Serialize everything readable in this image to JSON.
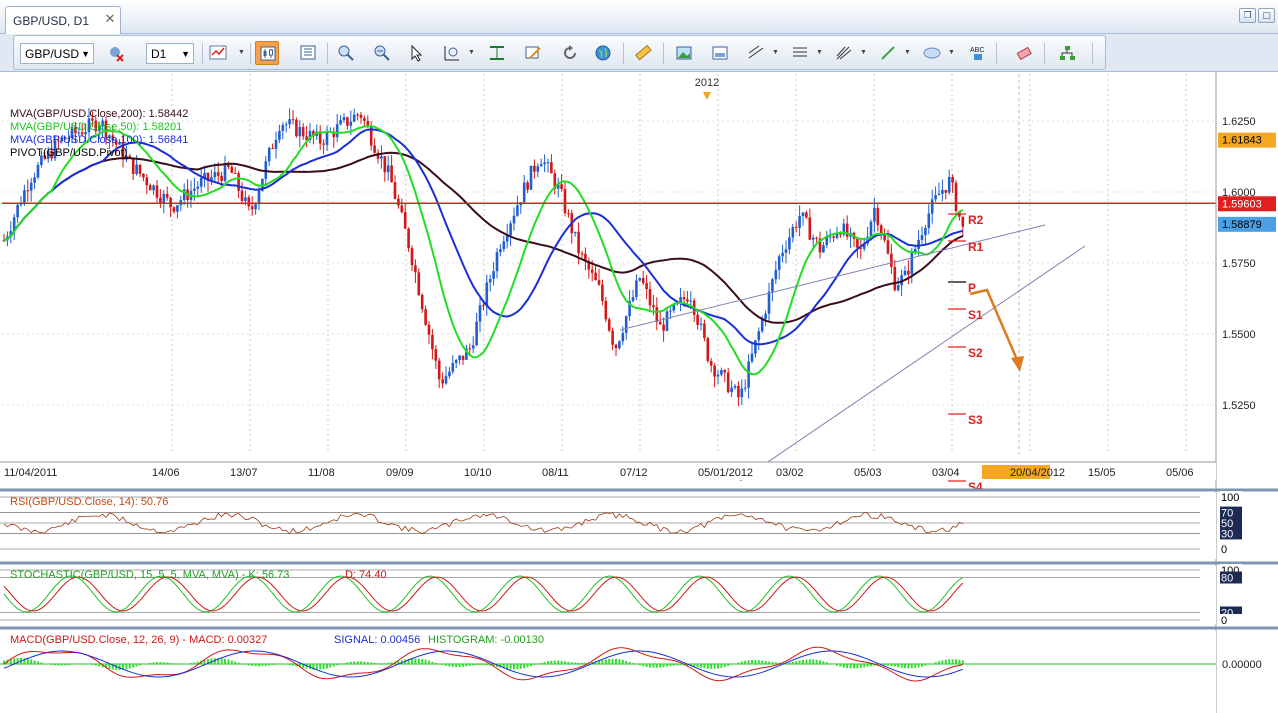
{
  "window": {
    "tab_title": "GBP/USD, D1",
    "close_glyph": "✕",
    "restore_glyph": "❐",
    "maximize_glyph": "▢"
  },
  "toolbar": {
    "symbol": "GBP/USD",
    "timeframe": "D1",
    "icons": [
      "chart-type-icon",
      "remove-icon",
      "candle-icon",
      "bar-chart-icon",
      "table-icon",
      "zoom-in-icon",
      "zoom-out-icon",
      "cursor-icon",
      "zoom-area-icon",
      "fit-icon",
      "edit-icon",
      "refresh-icon",
      "globe-icon",
      "ruler-icon",
      "image-icon",
      "save-icon",
      "line-tools-icon",
      "fib-icon",
      "pitchfork-icon",
      "pen-icon",
      "ellipse-icon",
      "text-icon",
      "eraser-icon",
      "hierarchy-icon"
    ]
  },
  "main_chart": {
    "year_marker": "2012",
    "legend": [
      {
        "text": "MVA(GBP/USD.Close,200): 1.58442",
        "color": "#3a0d1c"
      },
      {
        "text": "MVA(GBP/USD.Close,50): 1.58201",
        "color": "#22c022"
      },
      {
        "text": "MVA(GBP/USD.Close,100): 1.56841",
        "color": "#1a2fd6"
      },
      {
        "text": "PIVOT(GBP/USD.Pivot)",
        "color": "#000000"
      }
    ],
    "price_ticks": [
      "1.6250",
      "1.6000",
      "1.5750",
      "1.5500",
      "1.5250"
    ],
    "price_tags": [
      {
        "text": "1.61843",
        "bg": "#f5a623"
      },
      {
        "text": "1.59603",
        "bg": "#e02020"
      },
      {
        "text": "1.58879",
        "bg": "#4aa0e6"
      }
    ],
    "pivot_labels": [
      "R2",
      "R1",
      "P",
      "S1",
      "S2",
      "S3",
      "S4"
    ],
    "date_ticks": [
      "11/04/2011",
      "14/06",
      "13/07",
      "11/08",
      "09/09",
      "10/10",
      "08/11",
      "07/12",
      "05/01/2012",
      "03/02",
      "05/03",
      "03/04",
      "20/04/2012",
      "15/05",
      "05/06"
    ],
    "highlight_date": "20/04/2012"
  },
  "rsi": {
    "title": "RSI(GBP/USD.Close, 14): 50.76",
    "levels": [
      "100",
      "70",
      "50",
      "30",
      "0"
    ]
  },
  "stochastic": {
    "title_prefix": "STOCHASTIC(GBP/USD, 15, 5, 5, MVA, MVA) -  K: 56.73",
    "title_d": "D: 74.40",
    "levels": [
      "100",
      "80",
      "20",
      "0"
    ]
  },
  "macd": {
    "title_main": "MACD(GBP/USD.Close, 12, 26, 9) -  MACD: 0.00327",
    "title_signal": "SIGNAL: 0.00456",
    "title_hist": "HISTOGRAM: -0.00130",
    "levels": [
      "0.00000"
    ]
  },
  "colors": {
    "bull": "#1f5fd0",
    "bear": "#d01818",
    "ma200": "#3a0d1c",
    "ma50": "#22dd22",
    "ma100": "#1a2fd6",
    "resistance": "#e02020",
    "arrow": "#e07a1e"
  }
}
